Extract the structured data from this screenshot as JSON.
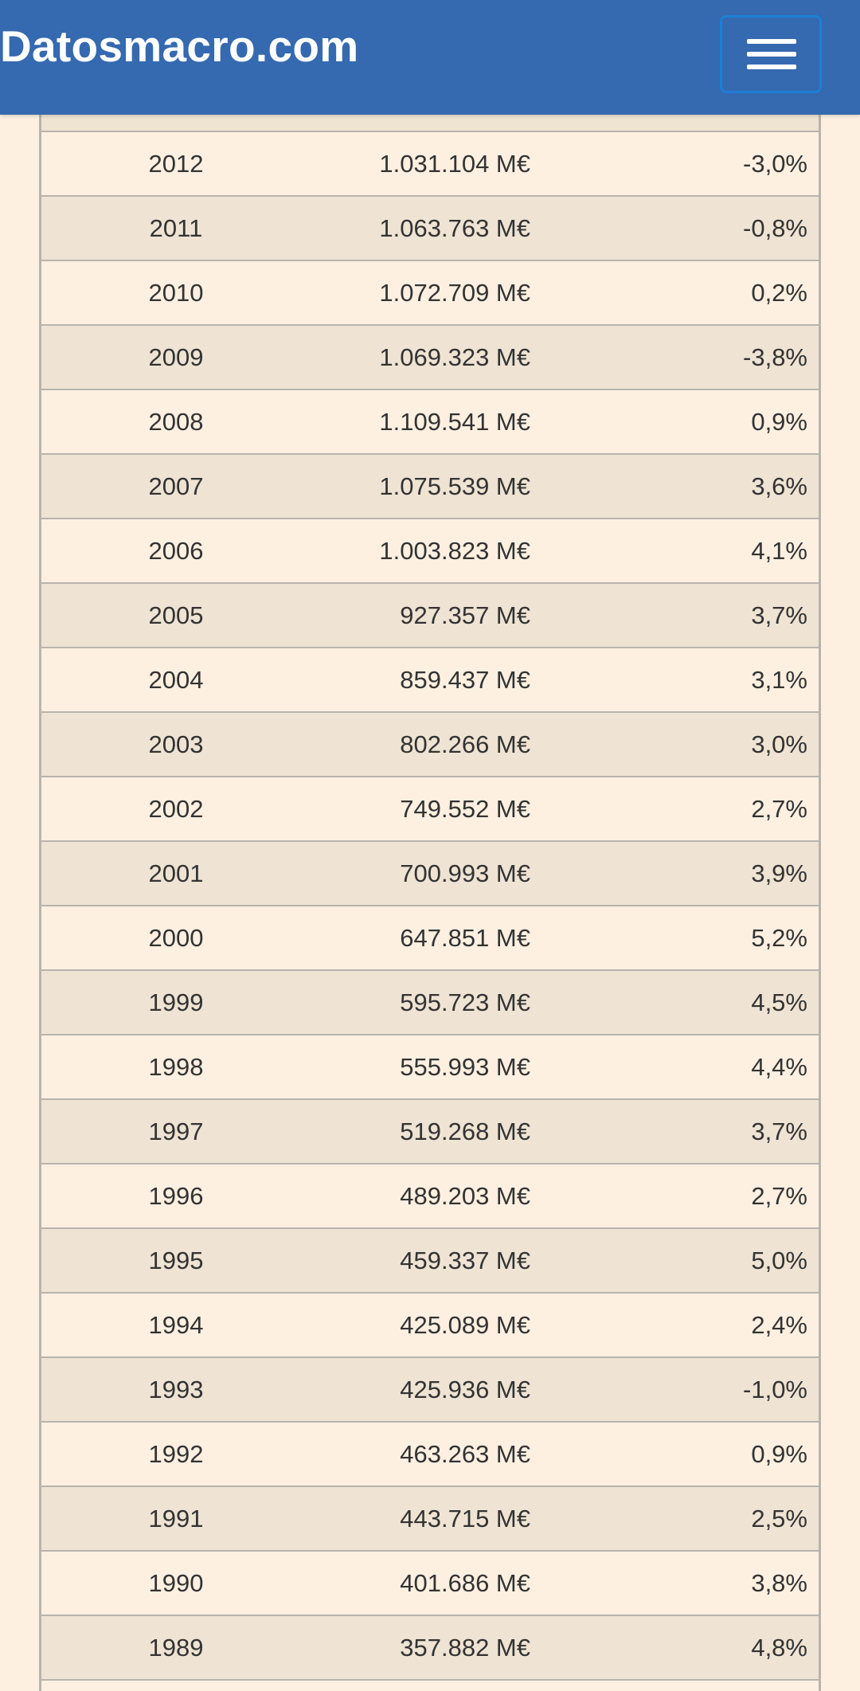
{
  "header": {
    "site_title": "Datosmacro.com",
    "menu_icon": "hamburger-menu-icon"
  },
  "table": {
    "rows": [
      {
        "year": "2012",
        "value": "1.031.104 M€",
        "change": "-3,0%"
      },
      {
        "year": "2011",
        "value": "1.063.763 M€",
        "change": "-0,8%"
      },
      {
        "year": "2010",
        "value": "1.072.709 M€",
        "change": "0,2%"
      },
      {
        "year": "2009",
        "value": "1.069.323 M€",
        "change": "-3,8%"
      },
      {
        "year": "2008",
        "value": "1.109.541 M€",
        "change": "0,9%"
      },
      {
        "year": "2007",
        "value": "1.075.539 M€",
        "change": "3,6%"
      },
      {
        "year": "2006",
        "value": "1.003.823 M€",
        "change": "4,1%"
      },
      {
        "year": "2005",
        "value": "927.357 M€",
        "change": "3,7%"
      },
      {
        "year": "2004",
        "value": "859.437 M€",
        "change": "3,1%"
      },
      {
        "year": "2003",
        "value": "802.266 M€",
        "change": "3,0%"
      },
      {
        "year": "2002",
        "value": "749.552 M€",
        "change": "2,7%"
      },
      {
        "year": "2001",
        "value": "700.993 M€",
        "change": "3,9%"
      },
      {
        "year": "2000",
        "value": "647.851 M€",
        "change": "5,2%"
      },
      {
        "year": "1999",
        "value": "595.723 M€",
        "change": "4,5%"
      },
      {
        "year": "1998",
        "value": "555.993 M€",
        "change": "4,4%"
      },
      {
        "year": "1997",
        "value": "519.268 M€",
        "change": "3,7%"
      },
      {
        "year": "1996",
        "value": "489.203 M€",
        "change": "2,7%"
      },
      {
        "year": "1995",
        "value": "459.337 M€",
        "change": "5,0%"
      },
      {
        "year": "1994",
        "value": "425.089 M€",
        "change": "2,4%"
      },
      {
        "year": "1993",
        "value": "425.936 M€",
        "change": "-1,0%"
      },
      {
        "year": "1992",
        "value": "463.263 M€",
        "change": "0,9%"
      },
      {
        "year": "1991",
        "value": "443.715 M€",
        "change": "2,5%"
      },
      {
        "year": "1990",
        "value": "401.686 M€",
        "change": "3,8%"
      },
      {
        "year": "1989",
        "value": "357.882 M€",
        "change": "4,8%"
      }
    ]
  },
  "colors": {
    "header_bg": "#3569b0",
    "page_bg": "#fdf0e1",
    "row_alt_bg": "#efe3d3",
    "border": "#b8b4ad",
    "menu_border": "#1e7fd6"
  }
}
